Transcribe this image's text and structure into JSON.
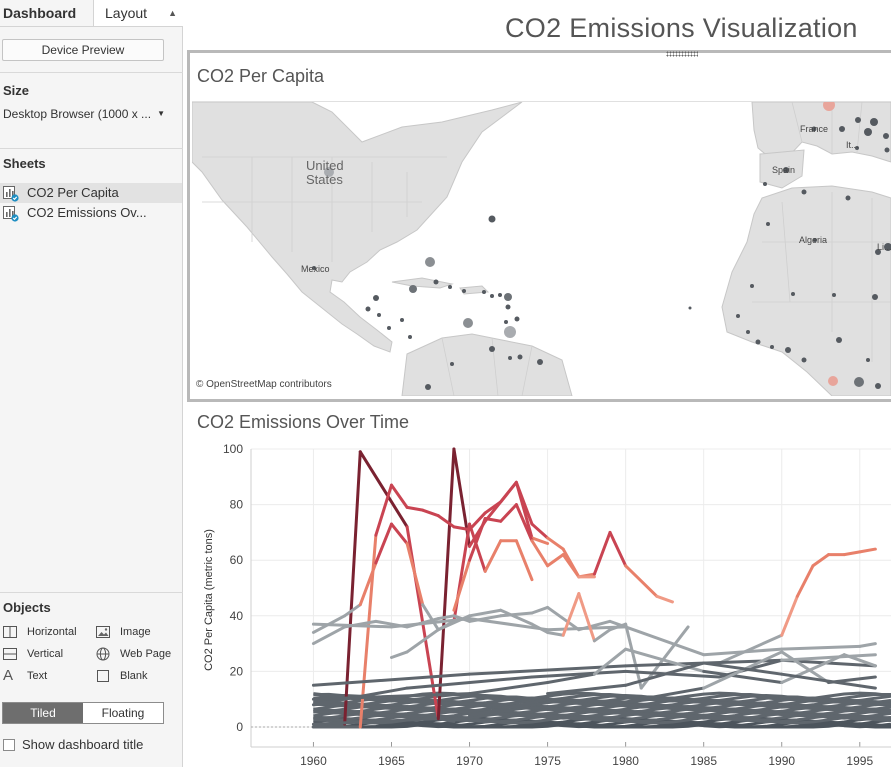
{
  "left_panel": {
    "tabs": {
      "dashboard": "Dashboard",
      "layout": "Layout"
    },
    "device_preview": "Device Preview",
    "size": {
      "title": "Size",
      "value": "Desktop Browser (1000 x ..."
    },
    "sheets": {
      "title": "Sheets",
      "items": [
        {
          "label": "CO2 Per Capita",
          "selected": true
        },
        {
          "label": "CO2 Emissions Ov...",
          "selected": false
        }
      ]
    },
    "objects": {
      "title": "Objects",
      "items": [
        {
          "label": "Horizontal",
          "icon": "horizontal-container-icon"
        },
        {
          "label": "Image",
          "icon": "image-icon"
        },
        {
          "label": "Vertical",
          "icon": "vertical-container-icon"
        },
        {
          "label": "Web Page",
          "icon": "globe-icon"
        },
        {
          "label": "Text",
          "icon": "text-icon"
        },
        {
          "label": "Blank",
          "icon": "blank-icon"
        }
      ]
    },
    "layout_mode": {
      "tiled": "Tiled",
      "floating": "Floating",
      "selected": "Tiled"
    },
    "show_title": {
      "label": "Show dashboard title",
      "checked": false
    }
  },
  "dashboard": {
    "title": "CO2 Emissions Visualization",
    "map": {
      "title": "CO2 Per Capita",
      "labels": [
        "United States",
        "Mexico",
        "France",
        "It...",
        "Spain",
        "Algeria",
        "Li..."
      ],
      "attribution": "© OpenStreetMap contributors"
    }
  },
  "chart_data": {
    "type": "line",
    "title": "CO2 Emissions Over Time",
    "xlabel": "",
    "ylabel": "CO2 Per Capita (metric tons)",
    "xlim": [
      1956,
      1997
    ],
    "ylim": [
      0,
      100
    ],
    "x_ticks": [
      1960,
      1965,
      1970,
      1975,
      1980,
      1985,
      1990,
      1995
    ],
    "y_ticks": [
      0,
      20,
      40,
      60,
      80,
      100
    ],
    "grid": true,
    "colors": {
      "dark_red": "#7a2231",
      "red": "#c94452",
      "salmon": "#e8806a",
      "light_salmon": "#f09a85",
      "gray": "#9ea4a8",
      "dark_gray": "#5f666d",
      "slate": "#4c545c"
    },
    "series": [
      {
        "x": [
          1960,
          1962,
          1963,
          1966,
          1968,
          1969
        ],
        "values": [
          0,
          1,
          99,
          72,
          3,
          2
        ]
      },
      {
        "x": [
          1960,
          1968,
          1969,
          1970,
          1971,
          1973,
          1974,
          1975
        ],
        "values": [
          1,
          3,
          100,
          65,
          74,
          88,
          68,
          66
        ]
      },
      {
        "x": [
          1960,
          1963,
          1964,
          1965,
          1966,
          1967,
          1968,
          1969,
          1970,
          1971,
          1972,
          1973,
          1974,
          1975,
          1976,
          1977,
          1978,
          1979,
          1980,
          1982,
          1983
        ],
        "values": [
          0,
          0,
          69,
          87,
          79,
          78,
          76,
          72,
          71,
          77,
          81,
          88,
          73,
          68,
          64,
          54,
          55,
          70,
          58,
          47,
          45
        ]
      },
      {
        "x": [
          1960,
          1962,
          1963,
          1964,
          1965,
          1966,
          1967,
          1968,
          1969,
          1970,
          1971,
          1972,
          1973,
          1974
        ],
        "values": [
          34,
          40,
          44,
          59,
          73,
          66,
          44,
          35,
          38,
          73,
          56,
          67,
          67,
          53
        ]
      },
      {
        "x": [
          1969,
          1970,
          1971,
          1972,
          1973,
          1974,
          1975,
          1976,
          1977,
          1978
        ],
        "values": [
          42,
          60,
          75,
          74,
          80,
          67,
          58,
          62,
          54,
          54
        ]
      },
      {
        "x": [
          1986,
          1990,
          1991,
          1992,
          1993,
          1994,
          1995,
          1996
        ],
        "values": [
          23,
          33,
          47,
          58,
          62,
          62,
          63,
          64
        ]
      },
      {
        "x": [
          1960,
          1962,
          1964,
          1966,
          1968,
          1969,
          1970,
          1972,
          1974,
          1975,
          1977,
          1979,
          1980
        ],
        "values": [
          30,
          36,
          38,
          36,
          39,
          40,
          38,
          40,
          41,
          43,
          35,
          38,
          36
        ]
      },
      {
        "x": [
          1960,
          1965,
          1970,
          1975,
          1980,
          1985,
          1990,
          1995,
          1996
        ],
        "values": [
          37,
          36,
          39,
          35,
          36,
          26,
          28,
          29,
          30
        ]
      },
      {
        "x": [
          1965,
          1966,
          1968,
          1970,
          1972,
          1974,
          1975,
          1976,
          1977,
          1978,
          1979,
          1980,
          1981,
          1984
        ],
        "values": [
          25,
          27,
          35,
          40,
          42,
          37,
          34,
          33,
          48,
          31,
          35,
          37,
          14,
          36
        ]
      },
      {
        "x": [
          1960,
          1970,
          1980,
          1990,
          1996
        ],
        "values": [
          15,
          19,
          22,
          24,
          22
        ]
      },
      {
        "x": [
          1960,
          1966,
          1974,
          1980,
          1986,
          1990,
          1996
        ],
        "values": [
          8,
          14,
          18,
          20,
          18,
          24,
          26
        ]
      },
      {
        "x": [
          1960,
          1970,
          1975,
          1978,
          1980,
          1985,
          1990,
          1994,
          1996
        ],
        "values": [
          10,
          12,
          16,
          19,
          28,
          20,
          16,
          26,
          22
        ]
      },
      {
        "x": [
          1970,
          1975,
          1980,
          1985,
          1990,
          1993,
          1996
        ],
        "values": [
          4,
          10,
          9,
          14,
          27,
          16,
          18
        ]
      },
      {
        "x": [
          1975,
          1980,
          1985,
          1990,
          1996
        ],
        "values": [
          12,
          15,
          23,
          19,
          14
        ]
      }
    ]
  }
}
